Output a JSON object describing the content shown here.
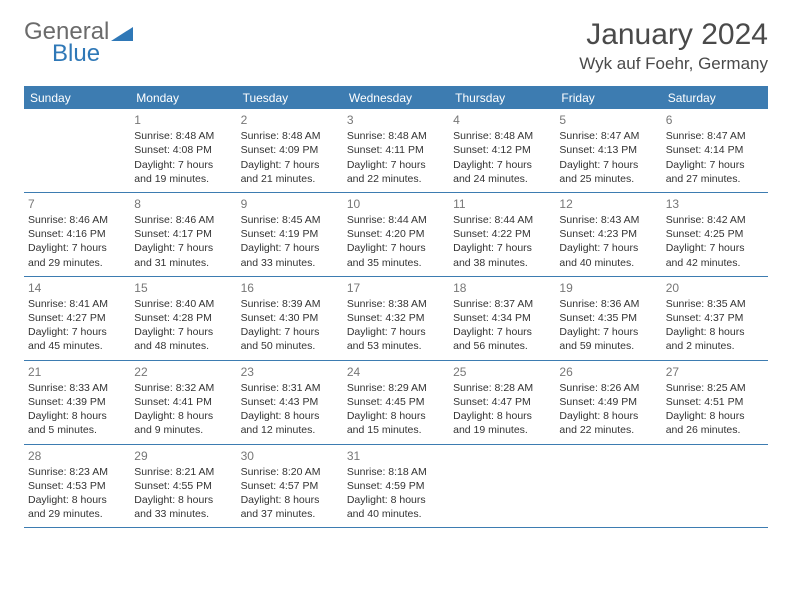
{
  "brand": {
    "name1": "General",
    "name2": "Blue"
  },
  "title": "January 2024",
  "location": "Wyk auf Foehr, Germany",
  "colors": {
    "header_bg": "#3d7cb1",
    "header_text": "#ffffff",
    "border": "#3d7cb1",
    "daynum": "#777777",
    "body_text": "#333333",
    "brand_gray": "#6b6b6b",
    "brand_blue": "#2f78b7",
    "title_text": "#4a4a4a"
  },
  "dow": [
    "Sunday",
    "Monday",
    "Tuesday",
    "Wednesday",
    "Thursday",
    "Friday",
    "Saturday"
  ],
  "weeks": [
    [
      {
        "n": "",
        "l1": "",
        "l2": "",
        "l3": "",
        "l4": ""
      },
      {
        "n": "1",
        "l1": "Sunrise: 8:48 AM",
        "l2": "Sunset: 4:08 PM",
        "l3": "Daylight: 7 hours",
        "l4": "and 19 minutes."
      },
      {
        "n": "2",
        "l1": "Sunrise: 8:48 AM",
        "l2": "Sunset: 4:09 PM",
        "l3": "Daylight: 7 hours",
        "l4": "and 21 minutes."
      },
      {
        "n": "3",
        "l1": "Sunrise: 8:48 AM",
        "l2": "Sunset: 4:11 PM",
        "l3": "Daylight: 7 hours",
        "l4": "and 22 minutes."
      },
      {
        "n": "4",
        "l1": "Sunrise: 8:48 AM",
        "l2": "Sunset: 4:12 PM",
        "l3": "Daylight: 7 hours",
        "l4": "and 24 minutes."
      },
      {
        "n": "5",
        "l1": "Sunrise: 8:47 AM",
        "l2": "Sunset: 4:13 PM",
        "l3": "Daylight: 7 hours",
        "l4": "and 25 minutes."
      },
      {
        "n": "6",
        "l1": "Sunrise: 8:47 AM",
        "l2": "Sunset: 4:14 PM",
        "l3": "Daylight: 7 hours",
        "l4": "and 27 minutes."
      }
    ],
    [
      {
        "n": "7",
        "l1": "Sunrise: 8:46 AM",
        "l2": "Sunset: 4:16 PM",
        "l3": "Daylight: 7 hours",
        "l4": "and 29 minutes."
      },
      {
        "n": "8",
        "l1": "Sunrise: 8:46 AM",
        "l2": "Sunset: 4:17 PM",
        "l3": "Daylight: 7 hours",
        "l4": "and 31 minutes."
      },
      {
        "n": "9",
        "l1": "Sunrise: 8:45 AM",
        "l2": "Sunset: 4:19 PM",
        "l3": "Daylight: 7 hours",
        "l4": "and 33 minutes."
      },
      {
        "n": "10",
        "l1": "Sunrise: 8:44 AM",
        "l2": "Sunset: 4:20 PM",
        "l3": "Daylight: 7 hours",
        "l4": "and 35 minutes."
      },
      {
        "n": "11",
        "l1": "Sunrise: 8:44 AM",
        "l2": "Sunset: 4:22 PM",
        "l3": "Daylight: 7 hours",
        "l4": "and 38 minutes."
      },
      {
        "n": "12",
        "l1": "Sunrise: 8:43 AM",
        "l2": "Sunset: 4:23 PM",
        "l3": "Daylight: 7 hours",
        "l4": "and 40 minutes."
      },
      {
        "n": "13",
        "l1": "Sunrise: 8:42 AM",
        "l2": "Sunset: 4:25 PM",
        "l3": "Daylight: 7 hours",
        "l4": "and 42 minutes."
      }
    ],
    [
      {
        "n": "14",
        "l1": "Sunrise: 8:41 AM",
        "l2": "Sunset: 4:27 PM",
        "l3": "Daylight: 7 hours",
        "l4": "and 45 minutes."
      },
      {
        "n": "15",
        "l1": "Sunrise: 8:40 AM",
        "l2": "Sunset: 4:28 PM",
        "l3": "Daylight: 7 hours",
        "l4": "and 48 minutes."
      },
      {
        "n": "16",
        "l1": "Sunrise: 8:39 AM",
        "l2": "Sunset: 4:30 PM",
        "l3": "Daylight: 7 hours",
        "l4": "and 50 minutes."
      },
      {
        "n": "17",
        "l1": "Sunrise: 8:38 AM",
        "l2": "Sunset: 4:32 PM",
        "l3": "Daylight: 7 hours",
        "l4": "and 53 minutes."
      },
      {
        "n": "18",
        "l1": "Sunrise: 8:37 AM",
        "l2": "Sunset: 4:34 PM",
        "l3": "Daylight: 7 hours",
        "l4": "and 56 minutes."
      },
      {
        "n": "19",
        "l1": "Sunrise: 8:36 AM",
        "l2": "Sunset: 4:35 PM",
        "l3": "Daylight: 7 hours",
        "l4": "and 59 minutes."
      },
      {
        "n": "20",
        "l1": "Sunrise: 8:35 AM",
        "l2": "Sunset: 4:37 PM",
        "l3": "Daylight: 8 hours",
        "l4": "and 2 minutes."
      }
    ],
    [
      {
        "n": "21",
        "l1": "Sunrise: 8:33 AM",
        "l2": "Sunset: 4:39 PM",
        "l3": "Daylight: 8 hours",
        "l4": "and 5 minutes."
      },
      {
        "n": "22",
        "l1": "Sunrise: 8:32 AM",
        "l2": "Sunset: 4:41 PM",
        "l3": "Daylight: 8 hours",
        "l4": "and 9 minutes."
      },
      {
        "n": "23",
        "l1": "Sunrise: 8:31 AM",
        "l2": "Sunset: 4:43 PM",
        "l3": "Daylight: 8 hours",
        "l4": "and 12 minutes."
      },
      {
        "n": "24",
        "l1": "Sunrise: 8:29 AM",
        "l2": "Sunset: 4:45 PM",
        "l3": "Daylight: 8 hours",
        "l4": "and 15 minutes."
      },
      {
        "n": "25",
        "l1": "Sunrise: 8:28 AM",
        "l2": "Sunset: 4:47 PM",
        "l3": "Daylight: 8 hours",
        "l4": "and 19 minutes."
      },
      {
        "n": "26",
        "l1": "Sunrise: 8:26 AM",
        "l2": "Sunset: 4:49 PM",
        "l3": "Daylight: 8 hours",
        "l4": "and 22 minutes."
      },
      {
        "n": "27",
        "l1": "Sunrise: 8:25 AM",
        "l2": "Sunset: 4:51 PM",
        "l3": "Daylight: 8 hours",
        "l4": "and 26 minutes."
      }
    ],
    [
      {
        "n": "28",
        "l1": "Sunrise: 8:23 AM",
        "l2": "Sunset: 4:53 PM",
        "l3": "Daylight: 8 hours",
        "l4": "and 29 minutes."
      },
      {
        "n": "29",
        "l1": "Sunrise: 8:21 AM",
        "l2": "Sunset: 4:55 PM",
        "l3": "Daylight: 8 hours",
        "l4": "and 33 minutes."
      },
      {
        "n": "30",
        "l1": "Sunrise: 8:20 AM",
        "l2": "Sunset: 4:57 PM",
        "l3": "Daylight: 8 hours",
        "l4": "and 37 minutes."
      },
      {
        "n": "31",
        "l1": "Sunrise: 8:18 AM",
        "l2": "Sunset: 4:59 PM",
        "l3": "Daylight: 8 hours",
        "l4": "and 40 minutes."
      },
      {
        "n": "",
        "l1": "",
        "l2": "",
        "l3": "",
        "l4": ""
      },
      {
        "n": "",
        "l1": "",
        "l2": "",
        "l3": "",
        "l4": ""
      },
      {
        "n": "",
        "l1": "",
        "l2": "",
        "l3": "",
        "l4": ""
      }
    ]
  ]
}
